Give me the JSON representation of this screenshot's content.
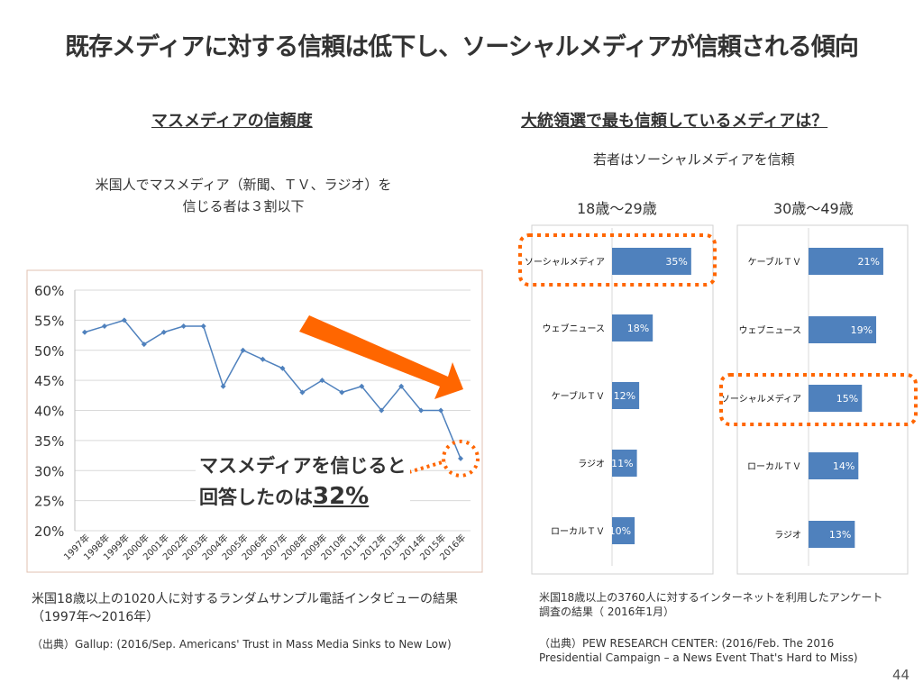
{
  "title": "既存メディアに対する信頼は低下し、ソーシャルメディアが信頼される傾向",
  "left": {
    "heading": "マスメディアの信頼度",
    "subtitle_line1": "米国人でマスメディア（新聞、ＴＶ、ラジオ）を",
    "subtitle_line2": "信じる者は３割以下",
    "callout_line1": "マスメディアを信じると",
    "callout_line2_prefix": "回答したのは",
    "callout_value": "32%",
    "note_line1": "米国18歳以上の1020人に対するランダムサンプル電話インタビューの結果",
    "note_line2": "（1997年～2016年）",
    "source": "（出典）Gallup: (2016/Sep. Americans' Trust in Mass Media Sinks to New Low)"
  },
  "right": {
    "heading": "大統領選で最も信頼しているメディアは？",
    "subtitle": "若者はソーシャルメディアを信頼",
    "group1": "18歳～29歳",
    "group2": "30歳～49歳",
    "note_line1": "米国18歳以上の3760人に対するインターネットを利用したアンケート",
    "note_line2": "調査の結果（ 2016年1月）",
    "source_line1": "（出典）PEW RESEARCH CENTER: (2016/Feb. The 2016",
    "source_line2": "Presidential Campaign – a News Event That's Hard to Miss)"
  },
  "page_number": "44",
  "colors": {
    "series": "#4f81bd",
    "accent": "#ff6600",
    "text": "#333333"
  },
  "chart_data": [
    {
      "type": "line",
      "x": [
        "1997年",
        "1998年",
        "1999年",
        "2000年",
        "2001年",
        "2002年",
        "2003年",
        "2004年",
        "2005年",
        "2006年",
        "2007年",
        "2008年",
        "2009年",
        "2010年",
        "2011年",
        "2012年",
        "2013年",
        "2014年",
        "2015年",
        "2016年"
      ],
      "values": [
        53,
        54,
        55,
        51,
        53,
        54,
        54,
        44,
        50,
        48.5,
        47,
        43,
        45,
        43,
        44,
        40,
        44,
        40,
        40,
        32
      ],
      "ylim": [
        20,
        60
      ],
      "yticks": [
        "20%",
        "25%",
        "30%",
        "35%",
        "40%",
        "45%",
        "50%",
        "55%",
        "60%"
      ],
      "grid": true,
      "unit": "%"
    },
    {
      "type": "bar",
      "orientation": "horizontal",
      "group": "18歳～29歳",
      "categories": [
        "ソーシャルメディア",
        "ウェブニュース",
        "ケーブルＴＶ",
        "ラジオ",
        "ローカルＴＶ"
      ],
      "values": [
        35,
        18,
        12,
        11,
        10
      ],
      "labels": [
        "35%",
        "18%",
        "12%",
        "11%",
        "10%"
      ],
      "highlight": "ソーシャルメディア"
    },
    {
      "type": "bar",
      "orientation": "horizontal",
      "group": "30歳～49歳",
      "categories": [
        "ケーブルＴＶ",
        "ウェブニュース",
        "ソーシャルメディア",
        "ローカルＴＶ",
        "ラジオ"
      ],
      "values": [
        21,
        19,
        15,
        14,
        13
      ],
      "labels": [
        "21%",
        "19%",
        "15%",
        "14%",
        "13%"
      ],
      "highlight": "ソーシャルメディア"
    }
  ]
}
